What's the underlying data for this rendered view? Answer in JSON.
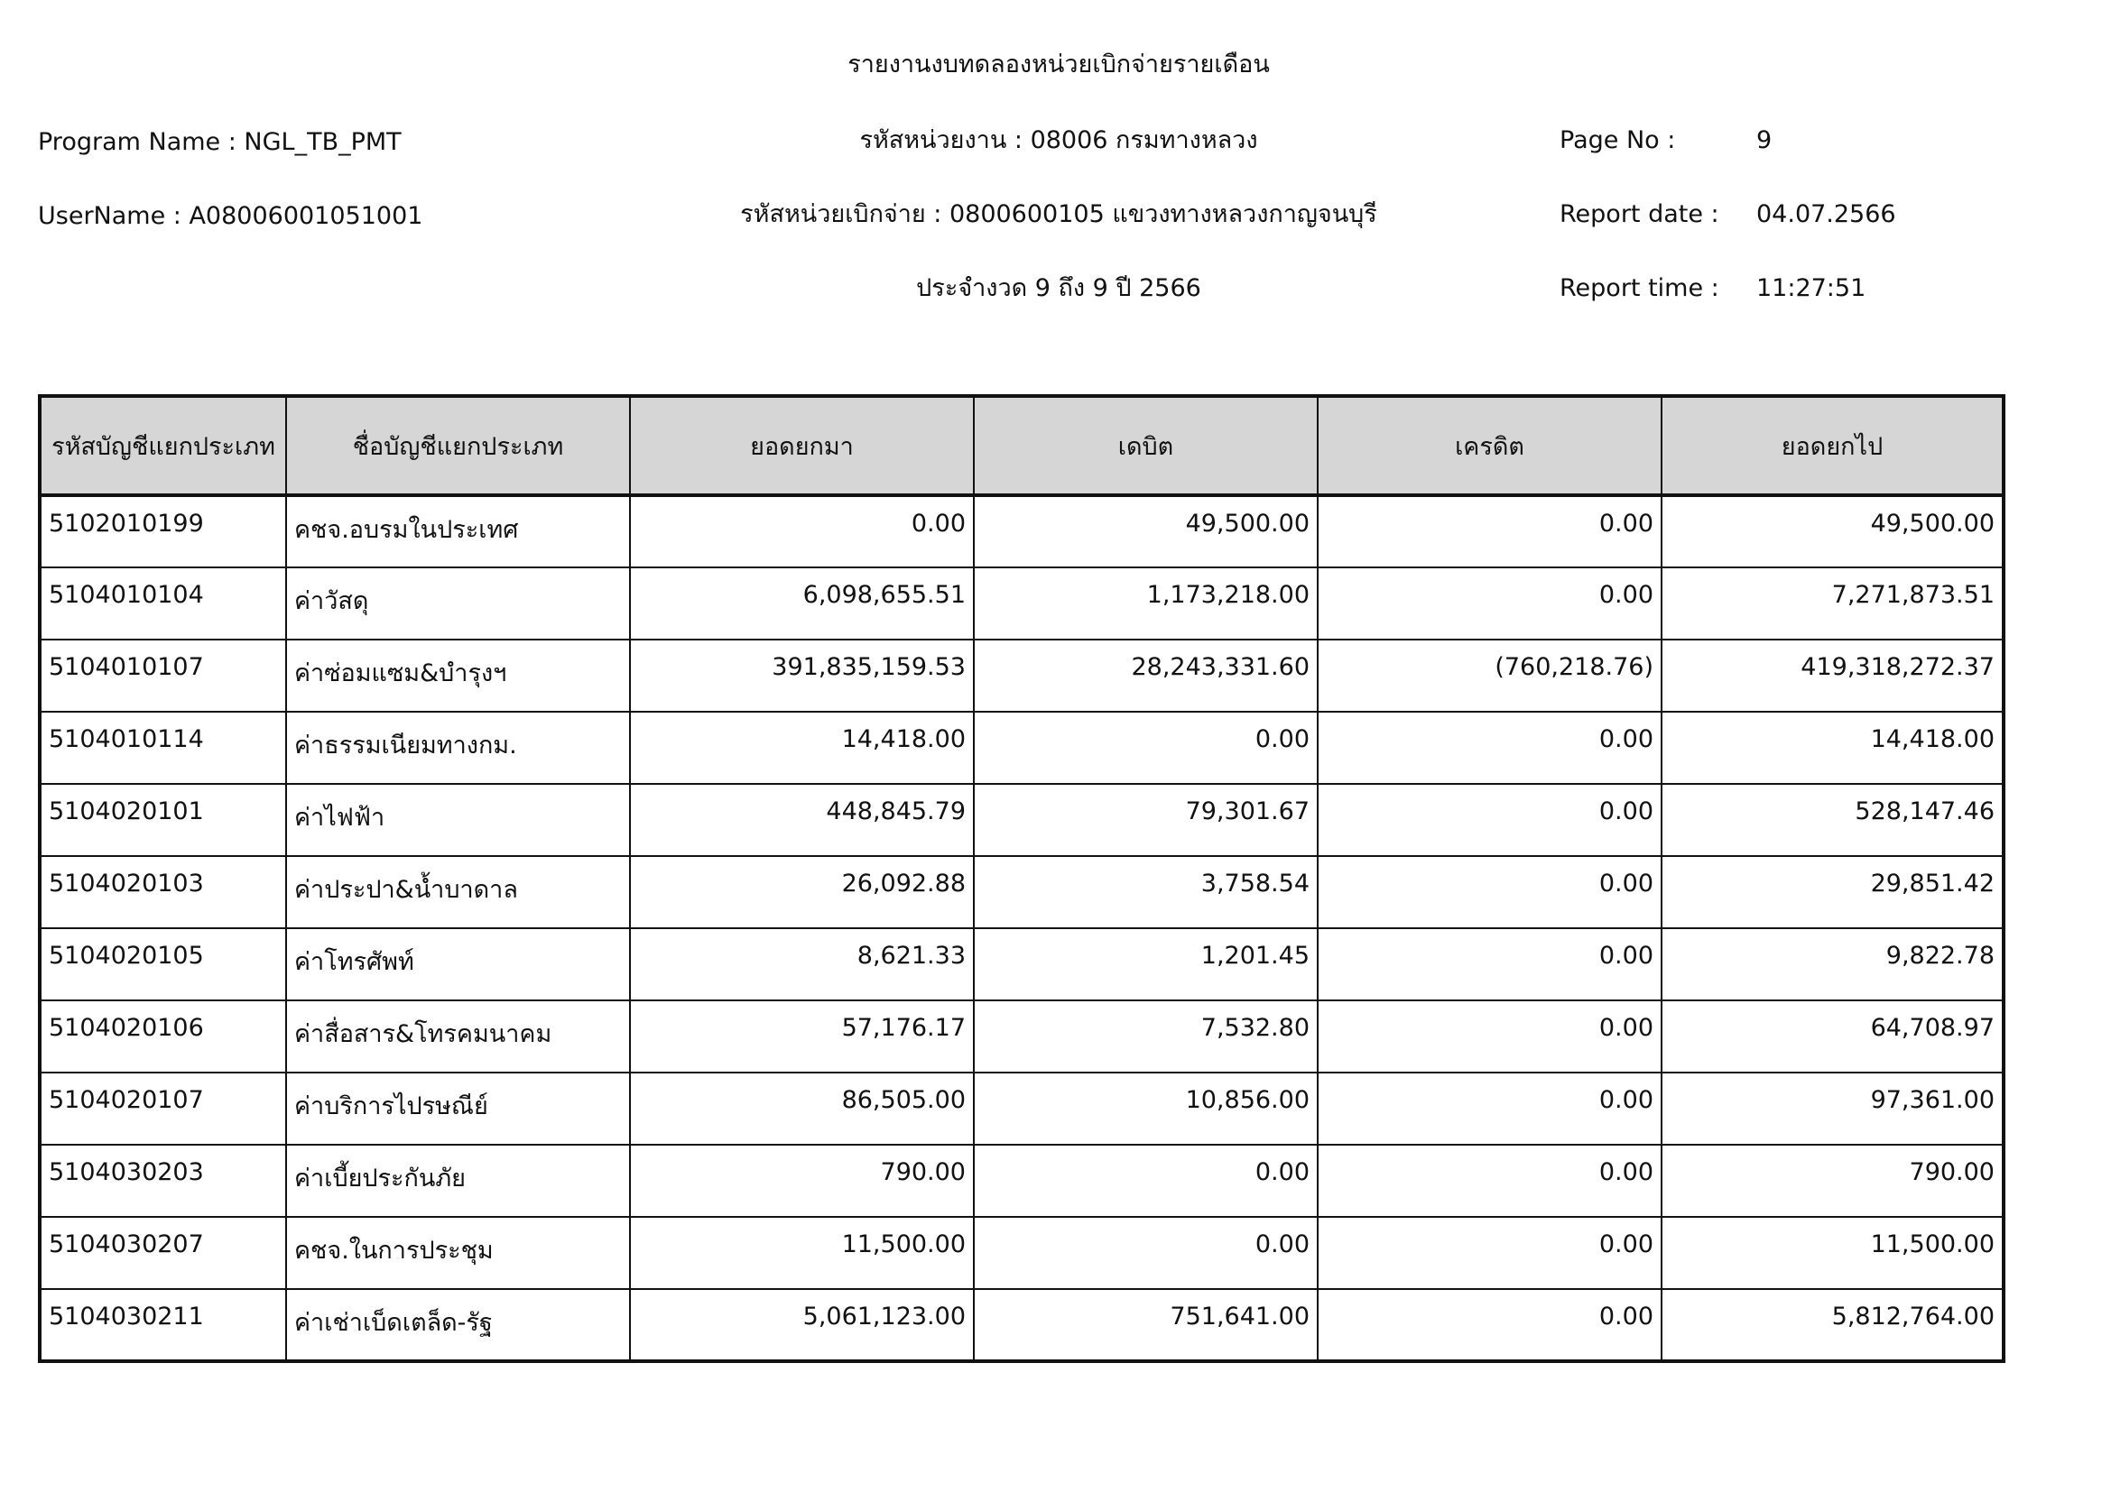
{
  "header": {
    "title": "รายงานงบทดลองหน่วยเบิกจ่ายรายเดือน",
    "program_name": "Program Name : NGL_TB_PMT",
    "user_name": "UserName : A08006001051001",
    "agency": "รหัสหน่วยงาน : 08006 กรมทางหลวง",
    "disbursing_unit": "รหัสหน่วยเบิกจ่าย : 0800600105 แขวงทางหลวงกาญจนบุรี",
    "period": "ประจำงวด 9 ถึง 9 ปี 2566",
    "page_no_label": "Page No :",
    "page_no": "9",
    "report_date_label": "Report date :",
    "report_date": "04.07.2566",
    "report_time_label": "Report time :",
    "report_time": "11:27:51"
  },
  "table": {
    "columns": [
      "รหัสบัญชีแยกประเภท",
      "ชื่อบัญชีแยกประเภท",
      "ยอดยกมา",
      "เดบิต",
      "เครดิต",
      "ยอดยกไป"
    ],
    "rows": [
      [
        "5102010199",
        "คชจ.อบรมในประเทศ",
        "0.00",
        "49,500.00",
        "0.00",
        "49,500.00"
      ],
      [
        "5104010104",
        "ค่าวัสดุ",
        "6,098,655.51",
        "1,173,218.00",
        "0.00",
        "7,271,873.51"
      ],
      [
        "5104010107",
        "ค่าซ่อมแซม&บำรุงฯ",
        "391,835,159.53",
        "28,243,331.60",
        "(760,218.76)",
        "419,318,272.37"
      ],
      [
        "5104010114",
        "ค่าธรรมเนียมทางกม.",
        "14,418.00",
        "0.00",
        "0.00",
        "14,418.00"
      ],
      [
        "5104020101",
        "ค่าไฟฟ้า",
        "448,845.79",
        "79,301.67",
        "0.00",
        "528,147.46"
      ],
      [
        "5104020103",
        "ค่าประปา&น้ำบาดาล",
        "26,092.88",
        "3,758.54",
        "0.00",
        "29,851.42"
      ],
      [
        "5104020105",
        "ค่าโทรศัพท์",
        "8,621.33",
        "1,201.45",
        "0.00",
        "9,822.78"
      ],
      [
        "5104020106",
        "ค่าสื่อสาร&โทรคมนาคม",
        "57,176.17",
        "7,532.80",
        "0.00",
        "64,708.97"
      ],
      [
        "5104020107",
        "ค่าบริการไปรษณีย์",
        "86,505.00",
        "10,856.00",
        "0.00",
        "97,361.00"
      ],
      [
        "5104030203",
        "ค่าเบี้ยประกันภัย",
        "790.00",
        "0.00",
        "0.00",
        "790.00"
      ],
      [
        "5104030207",
        "คชจ.ในการประชุม",
        "11,500.00",
        "0.00",
        "0.00",
        "11,500.00"
      ],
      [
        "5104030211",
        "ค่าเช่าเบ็ดเตล็ด-รัฐ",
        "5,061,123.00",
        "751,641.00",
        "0.00",
        "5,812,764.00"
      ]
    ]
  }
}
